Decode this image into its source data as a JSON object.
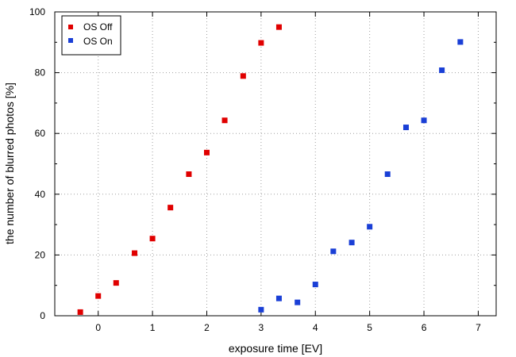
{
  "chart_data": {
    "type": "scatter",
    "xlabel": "exposure time [EV]",
    "ylabel": "the number of blurred photos [%]",
    "xlim": [
      -0.8,
      7.33
    ],
    "ylim": [
      0,
      100
    ],
    "xticks": [
      0,
      1,
      2,
      3,
      4,
      5,
      6,
      7
    ],
    "yticks": [
      0,
      20,
      40,
      60,
      80,
      100
    ],
    "grid": true,
    "legend_position": "top-left",
    "series": [
      {
        "name": "OS Off",
        "color": "#e00000",
        "points": [
          [
            -0.33,
            1.2
          ],
          [
            0.0,
            6.5
          ],
          [
            0.33,
            10.8
          ],
          [
            0.67,
            20.6
          ],
          [
            1.0,
            25.4
          ],
          [
            1.33,
            35.6
          ],
          [
            1.67,
            46.6
          ],
          [
            2.0,
            53.7
          ],
          [
            2.33,
            64.3
          ],
          [
            2.67,
            78.9
          ],
          [
            3.0,
            89.8
          ],
          [
            3.33,
            95.0
          ]
        ]
      },
      {
        "name": "OS On",
        "color": "#1a3fd6",
        "points": [
          [
            3.0,
            2.0
          ],
          [
            3.33,
            5.7
          ],
          [
            3.67,
            4.4
          ],
          [
            4.0,
            10.3
          ],
          [
            4.33,
            21.2
          ],
          [
            4.67,
            24.1
          ],
          [
            5.0,
            29.3
          ],
          [
            5.33,
            46.6
          ],
          [
            5.67,
            62.0
          ],
          [
            6.0,
            64.3
          ],
          [
            6.33,
            80.8
          ],
          [
            6.67,
            90.1
          ]
        ]
      }
    ]
  }
}
